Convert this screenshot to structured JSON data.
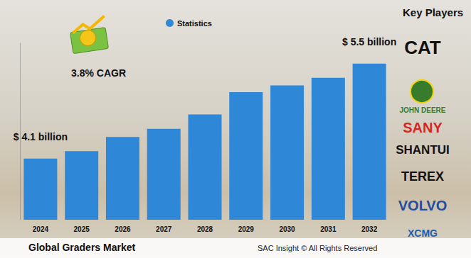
{
  "chart_data": {
    "type": "bar",
    "title": "Global Graders Market",
    "source": "SAC Insight © All Rights Reserved",
    "categories": [
      "2024",
      "2025",
      "2026",
      "2027",
      "2028",
      "2029",
      "2030",
      "2031",
      "2032"
    ],
    "series": [
      {
        "name": "Statistics",
        "color": "#2f87d8",
        "values": [
          4.1,
          4.21,
          4.42,
          4.54,
          4.75,
          5.08,
          5.18,
          5.29,
          5.5
        ]
      }
    ],
    "ylim": [
      3.2,
      5.8
    ],
    "tick_labels": "x",
    "grid": false,
    "legend": "top",
    "annotations": [
      {
        "text": "$ 4.1 billion",
        "category": "2024"
      },
      {
        "text": "$ 5.5 billion",
        "category": "2032"
      },
      {
        "text": "3.8% CAGR"
      }
    ],
    "key_players_title": "Key Players",
    "key_players": [
      "CAT",
      "JOHN DEERE",
      "SANY",
      "SHANTUI",
      "TEREX",
      "VOLVO",
      "XCMG"
    ]
  }
}
